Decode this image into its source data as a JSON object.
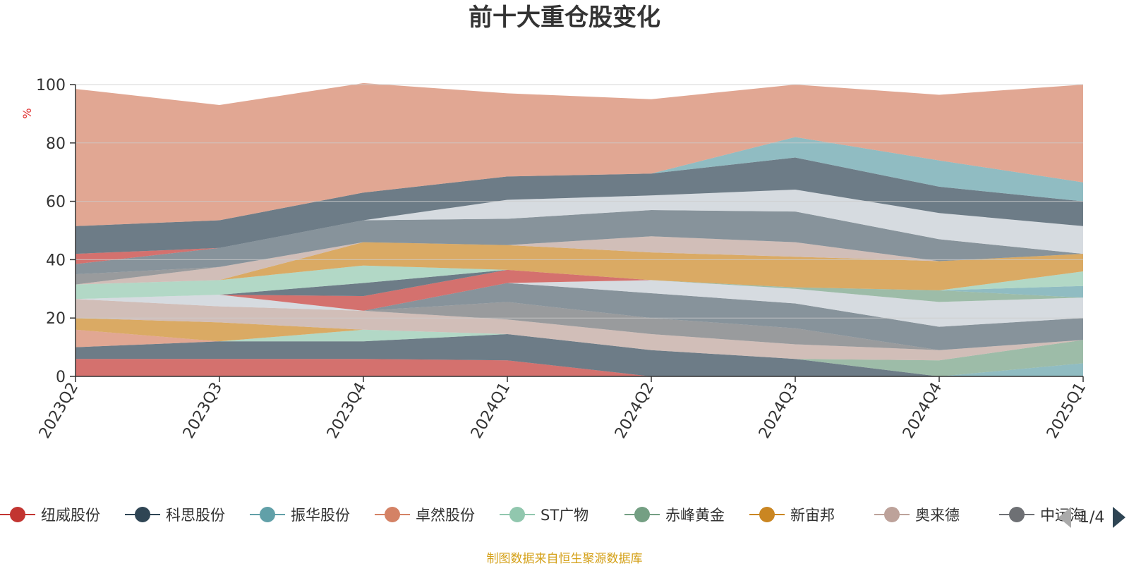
{
  "chart_data": {
    "type": "area",
    "title": "前十大重仓股变化",
    "ylabel": "%",
    "ylim": [
      0,
      100
    ],
    "yticks": [
      0,
      20,
      40,
      60,
      80,
      100
    ],
    "stacked": true,
    "grid": true,
    "categories": [
      "2023Q2",
      "2023Q3",
      "2023Q4",
      "2024Q1",
      "2024Q2",
      "2024Q3",
      "2024Q4",
      "2025Q1"
    ],
    "series": [
      {
        "name": "纽威股份",
        "color": "#c23531",
        "values": [
          6,
          6,
          6,
          5.5,
          0,
          0,
          0,
          0
        ]
      },
      {
        "name": "科思股份",
        "color": "#2f4554",
        "values": [
          4,
          6,
          6,
          9,
          9,
          6,
          0,
          0
        ]
      },
      {
        "name": "振华股份",
        "color": "#61a0a8",
        "values": [
          0,
          0,
          0,
          0,
          0,
          0,
          0,
          4.5
        ]
      },
      {
        "name": "卓然股份",
        "color": "#d48265",
        "values": [
          6,
          0,
          0,
          0,
          0,
          0,
          0,
          0
        ]
      },
      {
        "name": "ST广物",
        "color": "#91c7ae",
        "values": [
          0,
          0,
          4,
          0,
          0,
          0,
          0,
          0
        ]
      },
      {
        "name": "赤峰黄金",
        "color": "#749f83",
        "values": [
          0,
          0,
          0,
          0,
          0,
          0,
          5.5,
          8
        ]
      },
      {
        "name": "新宙邦",
        "color": "#ca8622",
        "values": [
          4,
          6.5,
          0,
          0,
          0,
          0,
          0,
          0
        ]
      },
      {
        "name": "奥来德",
        "color": "#bda29a",
        "values": [
          6.5,
          5.5,
          6.5,
          5,
          5.5,
          5,
          3.5,
          0
        ]
      },
      {
        "name": "中远海",
        "color": "#6e7074",
        "values": [
          0,
          0,
          0,
          6,
          5.5,
          5.5,
          0,
          0
        ]
      },
      {
        "name": "",
        "color": "#546570",
        "values": [
          0,
          0,
          0,
          6.5,
          8.5,
          8.5,
          8,
          7.5
        ]
      },
      {
        "name": "",
        "color": "#c4ccd3",
        "values": [
          0,
          4,
          0,
          0,
          4.5,
          5,
          8.5,
          7
        ]
      },
      {
        "name": "",
        "color": "#c23531",
        "values": [
          0,
          0,
          5,
          4.5,
          0,
          0,
          0,
          0
        ]
      },
      {
        "name": "",
        "color": "#2f4554",
        "values": [
          0,
          0,
          4.5,
          0,
          0,
          0,
          0,
          0
        ]
      },
      {
        "name": "",
        "color": "#749f83",
        "values": [
          0,
          0,
          0,
          0,
          0,
          0.5,
          4,
          0
        ]
      },
      {
        "name": "",
        "color": "#61a0a8",
        "values": [
          0,
          0,
          0,
          0,
          0,
          0,
          0,
          4
        ]
      },
      {
        "name": "",
        "color": "#91c7ae",
        "values": [
          5,
          5,
          6,
          0,
          0,
          0,
          0,
          5
        ]
      },
      {
        "name": "",
        "color": "#ca8622",
        "values": [
          0,
          0,
          8,
          8.5,
          9.5,
          10.5,
          10,
          6
        ]
      },
      {
        "name": "",
        "color": "#bda29a",
        "values": [
          0,
          4.5,
          0,
          0,
          5.5,
          5,
          0,
          0
        ]
      },
      {
        "name": "",
        "color": "#6e7074",
        "values": [
          3.5,
          0,
          0,
          0,
          0,
          0,
          0,
          0
        ]
      },
      {
        "name": "",
        "color": "#546570",
        "values": [
          3.5,
          6.5,
          7.5,
          9,
          9,
          10.5,
          7.5,
          0
        ]
      },
      {
        "name": "",
        "color": "#c4ccd3",
        "values": [
          0,
          0,
          0,
          6.5,
          5,
          7.5,
          9,
          9.5
        ]
      },
      {
        "name": "",
        "color": "#c23531",
        "values": [
          3.5,
          0,
          0,
          0,
          0,
          0,
          0,
          0
        ]
      },
      {
        "name": "",
        "color": "#2f4554",
        "values": [
          9.5,
          9.5,
          9.5,
          8,
          7.5,
          11,
          9,
          8.5
        ]
      },
      {
        "name": "",
        "color": "#61a0a8",
        "values": [
          0,
          0,
          0,
          0,
          0,
          7,
          9,
          6.5
        ]
      },
      {
        "name": "",
        "color": "#d48265",
        "values": [
          47,
          39.5,
          37.5,
          28.5,
          25.5,
          18,
          22.5,
          33.5
        ]
      }
    ]
  },
  "legend": {
    "items": [
      {
        "label": "纽威股份",
        "color": "#c23531"
      },
      {
        "label": "科思股份",
        "color": "#2f4554"
      },
      {
        "label": "振华股份",
        "color": "#61a0a8"
      },
      {
        "label": "卓然股份",
        "color": "#d48265"
      },
      {
        "label": "ST广物",
        "color": "#91c7ae"
      },
      {
        "label": "赤峰黄金",
        "color": "#749f83"
      },
      {
        "label": "新宙邦",
        "color": "#ca8622"
      },
      {
        "label": "奥来德",
        "color": "#bda29a"
      },
      {
        "label": "中远海",
        "color": "#6e7074"
      }
    ],
    "page_indicator": "1/4"
  },
  "source_text": "制图数据来自恒生聚源数据库"
}
